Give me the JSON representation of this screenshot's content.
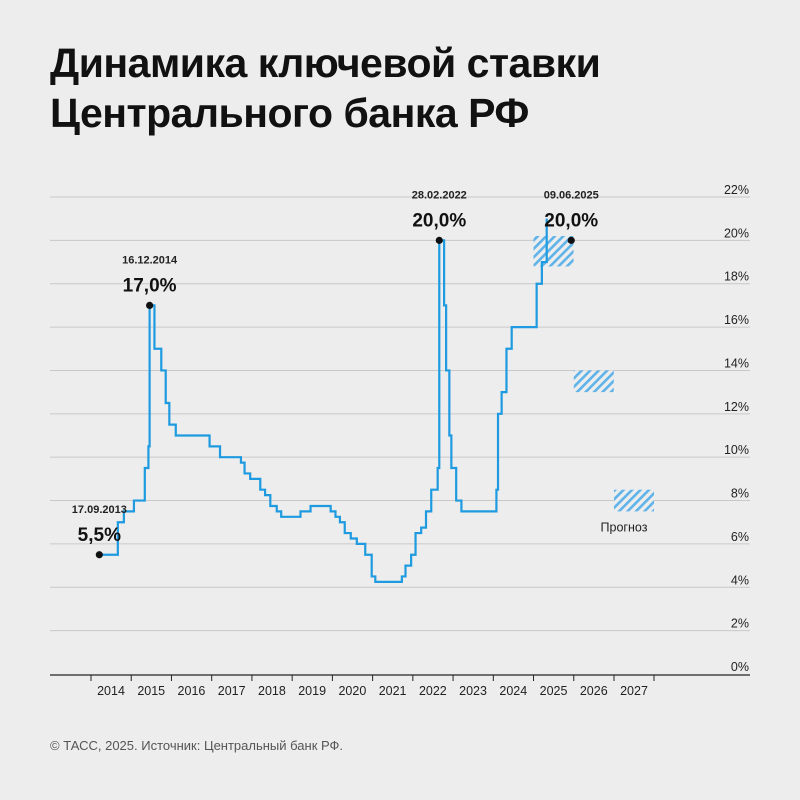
{
  "title": {
    "line1": "Динамика ключевой ставки",
    "line2": "Центрального банка РФ"
  },
  "footer": "© ТАСС, 2025. Источник: Центральный банк РФ.",
  "colors": {
    "line": "#1e9be0",
    "hatch": "#5fb3e8",
    "grid": "#c8c8c8",
    "text": "#111111",
    "background": "#ededed"
  },
  "chart_data": {
    "type": "line",
    "title": "Динамика ключевой ставки Центрального банка РФ",
    "xlabel": "",
    "ylabel": "",
    "xlim": [
      2013,
      2028
    ],
    "ylim": [
      0,
      22
    ],
    "y_ticks": [
      "0%",
      "2%",
      "4%",
      "6%",
      "8%",
      "10%",
      "12%",
      "14%",
      "16%",
      "18%",
      "20%",
      "22%"
    ],
    "x_ticks": [
      "2014",
      "2015",
      "2016",
      "2017",
      "2018",
      "2019",
      "2020",
      "2021",
      "2022",
      "2023",
      "2024",
      "2025",
      "2026",
      "2027"
    ],
    "grid": true,
    "series": [
      {
        "steps": [
          [
            2013.71,
            5.5
          ],
          [
            2014.17,
            7.0
          ],
          [
            2014.32,
            7.5
          ],
          [
            2014.57,
            8.0
          ],
          [
            2014.84,
            9.5
          ],
          [
            2014.93,
            10.5
          ],
          [
            2014.96,
            17.0
          ],
          [
            2015.08,
            15.0
          ],
          [
            2015.25,
            14.0
          ],
          [
            2015.36,
            12.5
          ],
          [
            2015.45,
            11.5
          ],
          [
            2015.61,
            11.0
          ],
          [
            2016.45,
            10.5
          ],
          [
            2016.71,
            10.0
          ],
          [
            2017.23,
            9.75
          ],
          [
            2017.32,
            9.25
          ],
          [
            2017.46,
            9.0
          ],
          [
            2017.71,
            8.5
          ],
          [
            2017.83,
            8.25
          ],
          [
            2017.96,
            7.75
          ],
          [
            2018.12,
            7.5
          ],
          [
            2018.23,
            7.25
          ],
          [
            2018.71,
            7.5
          ],
          [
            2018.96,
            7.75
          ],
          [
            2019.46,
            7.5
          ],
          [
            2019.58,
            7.25
          ],
          [
            2019.69,
            7.0
          ],
          [
            2019.81,
            6.5
          ],
          [
            2019.96,
            6.25
          ],
          [
            2020.11,
            6.0
          ],
          [
            2020.32,
            5.5
          ],
          [
            2020.48,
            4.5
          ],
          [
            2020.57,
            4.25
          ],
          [
            2021.23,
            4.5
          ],
          [
            2021.32,
            5.0
          ],
          [
            2021.46,
            5.5
          ],
          [
            2021.57,
            6.5
          ],
          [
            2021.71,
            6.75
          ],
          [
            2021.83,
            7.5
          ],
          [
            2021.96,
            8.5
          ],
          [
            2022.12,
            9.5
          ],
          [
            2022.16,
            20.0
          ],
          [
            2022.28,
            17.0
          ],
          [
            2022.33,
            14.0
          ],
          [
            2022.41,
            11.0
          ],
          [
            2022.46,
            9.5
          ],
          [
            2022.58,
            8.0
          ],
          [
            2022.71,
            7.5
          ],
          [
            2023.58,
            8.5
          ],
          [
            2023.62,
            12.0
          ],
          [
            2023.71,
            13.0
          ],
          [
            2023.83,
            15.0
          ],
          [
            2023.96,
            16.0
          ],
          [
            2024.58,
            18.0
          ],
          [
            2024.71,
            19.0
          ],
          [
            2024.83,
            21.0
          ]
        ]
      }
    ],
    "forecast": {
      "label": "Прогноз",
      "ranges": [
        {
          "year": "2025",
          "low": 18.8,
          "high": 20.2
        },
        {
          "year": "2026",
          "low": 13.0,
          "high": 14.0
        },
        {
          "year": "2027",
          "low": 7.5,
          "high": 8.5
        }
      ]
    },
    "annotations": [
      {
        "date": "17.09.2013",
        "label": "5,5%",
        "x": 2013.71,
        "y": 5.5
      },
      {
        "date": "16.12.2014",
        "label": "17,0%",
        "x": 2014.96,
        "y": 17.0
      },
      {
        "date": "28.02.2022",
        "label": "20,0%",
        "x": 2022.16,
        "y": 20.0
      },
      {
        "date": "09.06.2025",
        "label": "20,0%",
        "x": 2025.44,
        "y": 20.0
      }
    ]
  }
}
